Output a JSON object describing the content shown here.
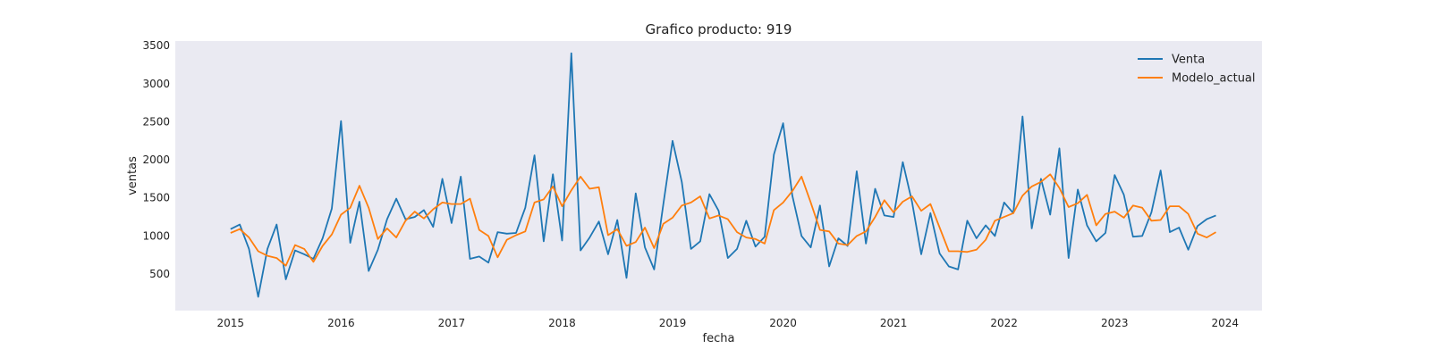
{
  "chart_data": {
    "type": "line",
    "title": "Grafico producto: 919",
    "xlabel": "fecha",
    "ylabel": "ventas",
    "x_start": "2015-01",
    "x_frequency": "monthly",
    "x_ticks": [
      "2015",
      "2016",
      "2017",
      "2018",
      "2019",
      "2020",
      "2021",
      "2022",
      "2023",
      "2024"
    ],
    "y_ticks": [
      500,
      1000,
      1500,
      2000,
      2500,
      3000,
      3500
    ],
    "xlim": [
      "2014-07",
      "2024-05"
    ],
    "ylim": [
      20,
      3560
    ],
    "grid": false,
    "background": "#eaeaf2",
    "legend_position": "top-right",
    "series": [
      {
        "name": "Venta",
        "color": "#1f77b4",
        "values": [
          1090,
          1150,
          830,
          200,
          830,
          1150,
          430,
          810,
          760,
          700,
          970,
          1360,
          2510,
          910,
          1450,
          540,
          820,
          1220,
          1490,
          1220,
          1250,
          1340,
          1120,
          1750,
          1170,
          1780,
          700,
          730,
          650,
          1050,
          1030,
          1040,
          1370,
          2060,
          930,
          1810,
          940,
          3400,
          810,
          980,
          1190,
          760,
          1210,
          450,
          1560,
          850,
          560,
          1420,
          2250,
          1710,
          830,
          930,
          1550,
          1330,
          710,
          830,
          1200,
          860,
          990,
          2070,
          2480,
          1530,
          1000,
          850,
          1400,
          600,
          970,
          870,
          1850,
          900,
          1620,
          1270,
          1250,
          1970,
          1450,
          760,
          1300,
          770,
          600,
          560,
          1200,
          970,
          1140,
          1000,
          1440,
          1300,
          2570,
          1100,
          1750,
          1280,
          2150,
          710,
          1610,
          1140,
          930,
          1040,
          1800,
          1540,
          990,
          1000,
          1310,
          1860,
          1050,
          1110,
          820,
          1130,
          1220,
          1270
        ]
      },
      {
        "name": "Modelo_actual",
        "color": "#ff7f0e",
        "values": [
          1040,
          1090,
          980,
          800,
          740,
          710,
          610,
          880,
          830,
          660,
          870,
          1020,
          1280,
          1370,
          1660,
          1370,
          960,
          1100,
          980,
          1200,
          1320,
          1230,
          1350,
          1440,
          1420,
          1420,
          1490,
          1080,
          1000,
          720,
          950,
          1010,
          1060,
          1440,
          1480,
          1650,
          1390,
          1600,
          1780,
          1620,
          1640,
          1010,
          1090,
          870,
          920,
          1110,
          840,
          1160,
          1240,
          1400,
          1440,
          1520,
          1230,
          1270,
          1220,
          1050,
          980,
          960,
          900,
          1340,
          1440,
          1590,
          1780,
          1440,
          1080,
          1060,
          900,
          880,
          1000,
          1060,
          1250,
          1470,
          1310,
          1450,
          1520,
          1330,
          1420,
          1110,
          800,
          800,
          790,
          820,
          950,
          1200,
          1250,
          1300,
          1530,
          1650,
          1710,
          1810,
          1630,
          1380,
          1430,
          1540,
          1140,
          1290,
          1320,
          1240,
          1400,
          1370,
          1200,
          1210,
          1390,
          1390,
          1290,
          1030,
          980,
          1050
        ]
      }
    ]
  }
}
